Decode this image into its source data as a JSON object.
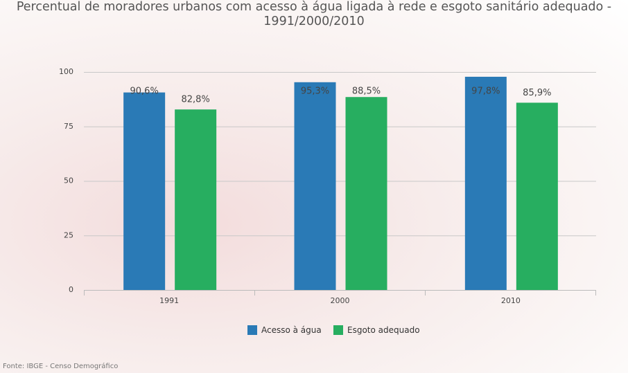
{
  "chart_data": {
    "type": "bar",
    "title": "Percentual de moradores urbanos com acesso à água ligada à rede e esgoto sanitário adequado - 1991/2000/2010",
    "categories": [
      "1991",
      "2000",
      "2010"
    ],
    "series": [
      {
        "name": "Acesso à água",
        "color": "#2a7ab6",
        "values": [
          90.6,
          95.3,
          97.8
        ],
        "value_labels": [
          "90,6%",
          "95,3%",
          "97,8%"
        ]
      },
      {
        "name": "Esgoto adequado",
        "color": "#27ae60",
        "values": [
          82.8,
          88.5,
          85.9
        ],
        "value_labels": [
          "82,8%",
          "88,5%",
          "85,9%"
        ]
      }
    ],
    "ylim": [
      0,
      100
    ],
    "yticks": [
      0,
      25,
      50,
      75,
      100
    ],
    "grid": true,
    "source": "Fonte: IBGE - Censo Demográfico"
  }
}
